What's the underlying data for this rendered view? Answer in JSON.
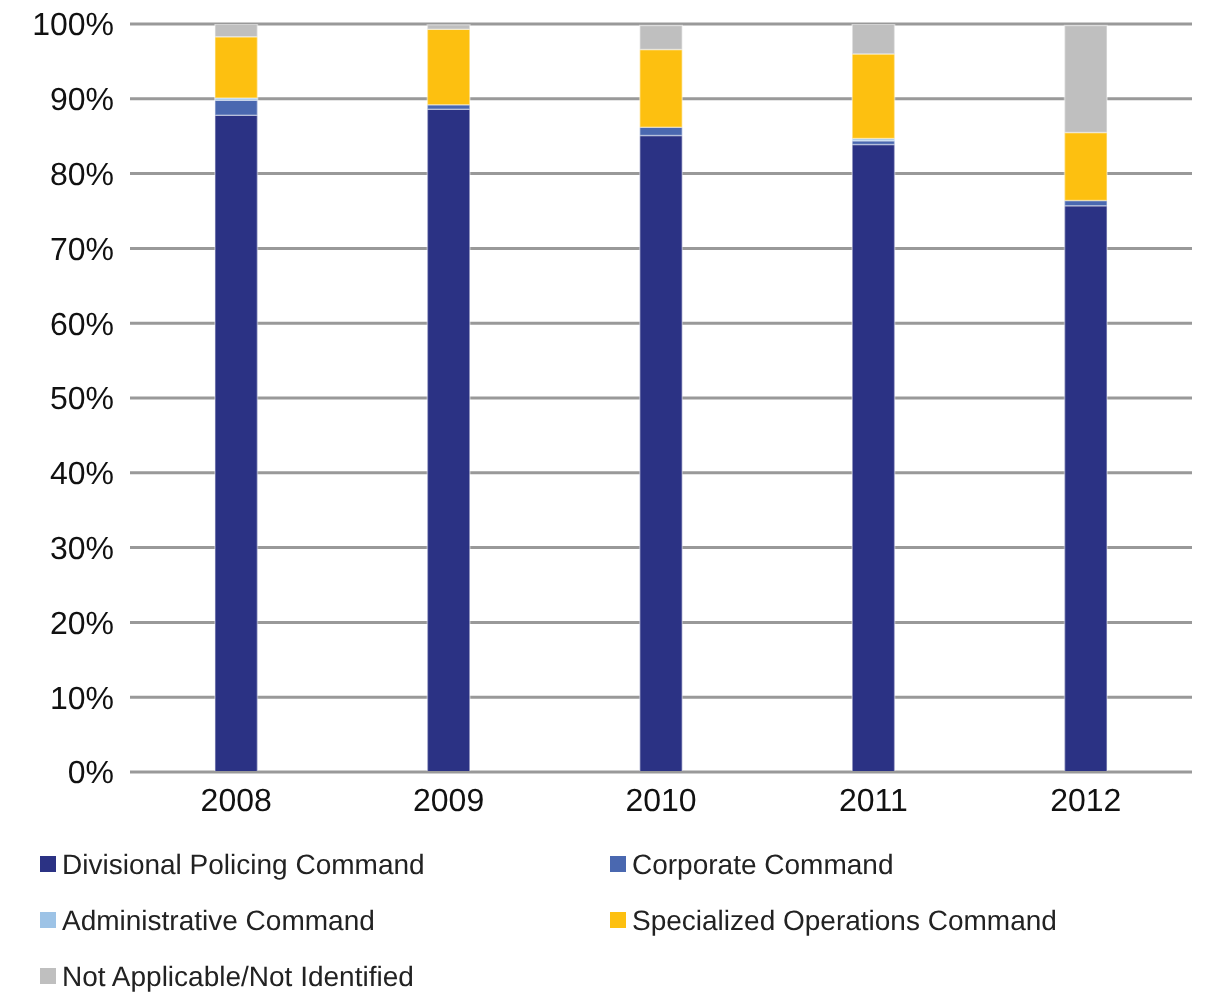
{
  "chart_data": {
    "type": "bar",
    "stacked": true,
    "categories": [
      "2008",
      "2009",
      "2010",
      "2011",
      "2012"
    ],
    "series": [
      {
        "name": "Divisional Policing Command",
        "color": "#2b3284",
        "values": [
          87.8,
          88.6,
          85.1,
          83.9,
          75.7
        ]
      },
      {
        "name": "Corporate Command",
        "color": "#4a68b0",
        "values": [
          2.0,
          0.6,
          1.1,
          0.5,
          0.7
        ]
      },
      {
        "name": "Administrative Command",
        "color": "#9dc3e6",
        "values": [
          0.3,
          null,
          null,
          0.3,
          null
        ]
      },
      {
        "name": "Specialized Operations Command",
        "color": "#fdc010",
        "values": [
          8.2,
          10.1,
          10.4,
          11.3,
          9.1
        ]
      },
      {
        "name": "Not Applicable/Not Identified",
        "color": "#bfbfbf",
        "values": [
          1.7,
          0.6,
          3.2,
          4.0,
          14.3
        ]
      }
    ],
    "ylim": [
      0,
      100
    ],
    "yticks": [
      {
        "value": 0,
        "label": "0%"
      },
      {
        "value": 10,
        "label": "10%"
      },
      {
        "value": 20,
        "label": "20%"
      },
      {
        "value": 30,
        "label": "30%"
      },
      {
        "value": 40,
        "label": "40%"
      },
      {
        "value": 50,
        "label": "50%"
      },
      {
        "value": 60,
        "label": "60%"
      },
      {
        "value": 70,
        "label": "70%"
      },
      {
        "value": 80,
        "label": "80%"
      },
      {
        "value": 90,
        "label": "90%"
      },
      {
        "value": 100,
        "label": "100%"
      }
    ],
    "grid": "y",
    "legend": "bottom"
  }
}
